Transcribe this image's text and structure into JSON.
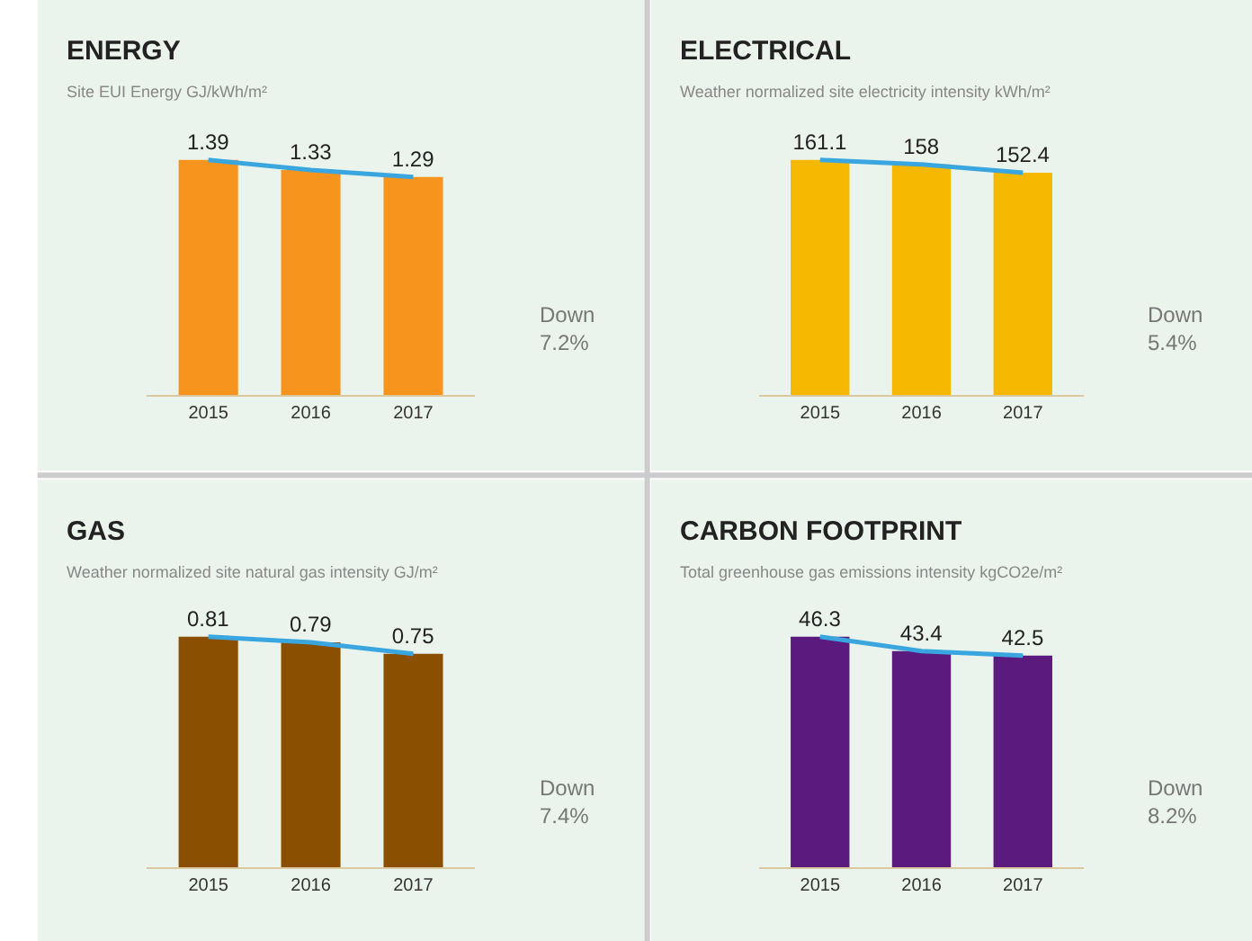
{
  "chart_data": [
    {
      "type": "bar",
      "title": "ENERGY",
      "subtitle": "Site EUI Energy GJ/kWh/m²",
      "categories": [
        "2015",
        "2016",
        "2017"
      ],
      "annotations": [
        "Down\n7.2%"
      ],
      "series": [
        {
          "color": "#f7941d",
          "values": [
            1.39,
            1.33,
            1.29
          ],
          "value_labels": [
            "1.39",
            "1.33",
            "1.29"
          ]
        },
        {
          "type": "line",
          "color": "#3aa6e0",
          "values": [
            1.39,
            1.33,
            1.29
          ]
        }
      ]
    },
    {
      "type": "bar",
      "title": "ELECTRICAL",
      "subtitle": "Weather normalized site electricity intensity kWh/m²",
      "categories": [
        "2015",
        "2016",
        "2017"
      ],
      "annotations": [
        "Down\n5.4%"
      ],
      "series": [
        {
          "color": "#f6b800",
          "values": [
            161.1,
            158,
            152.4
          ],
          "value_labels": [
            "161.1",
            "158",
            "152.4"
          ]
        },
        {
          "type": "line",
          "color": "#3aa6e0",
          "values": [
            161.1,
            158,
            152.4
          ]
        }
      ]
    },
    {
      "type": "bar",
      "title": "GAS",
      "subtitle": "Weather normalized site natural gas intensity GJ/m²",
      "categories": [
        "2015",
        "2016",
        "2017"
      ],
      "annotations": [
        "Down\n7.4%"
      ],
      "series": [
        {
          "color": "#8b4f00",
          "values": [
            0.81,
            0.79,
            0.75
          ],
          "value_labels": [
            "0.81",
            "0.79",
            "0.75"
          ]
        },
        {
          "type": "line",
          "color": "#3aa6e0",
          "values": [
            0.81,
            0.79,
            0.75
          ]
        }
      ]
    },
    {
      "type": "bar",
      "title": "CARBON FOOTPRINT",
      "subtitle": "Total greenhouse gas emissions intensity kgCO2e/m²",
      "categories": [
        "2015",
        "2016",
        "2017"
      ],
      "annotations": [
        "Down\n8.2%"
      ],
      "series": [
        {
          "color": "#5a1a7e",
          "values": [
            46.3,
            43.4,
            42.5
          ],
          "value_labels": [
            "46.3",
            "43.4",
            "42.5"
          ]
        },
        {
          "type": "line",
          "color": "#3aa6e0",
          "values": [
            46.3,
            43.4,
            42.5
          ]
        }
      ]
    }
  ]
}
